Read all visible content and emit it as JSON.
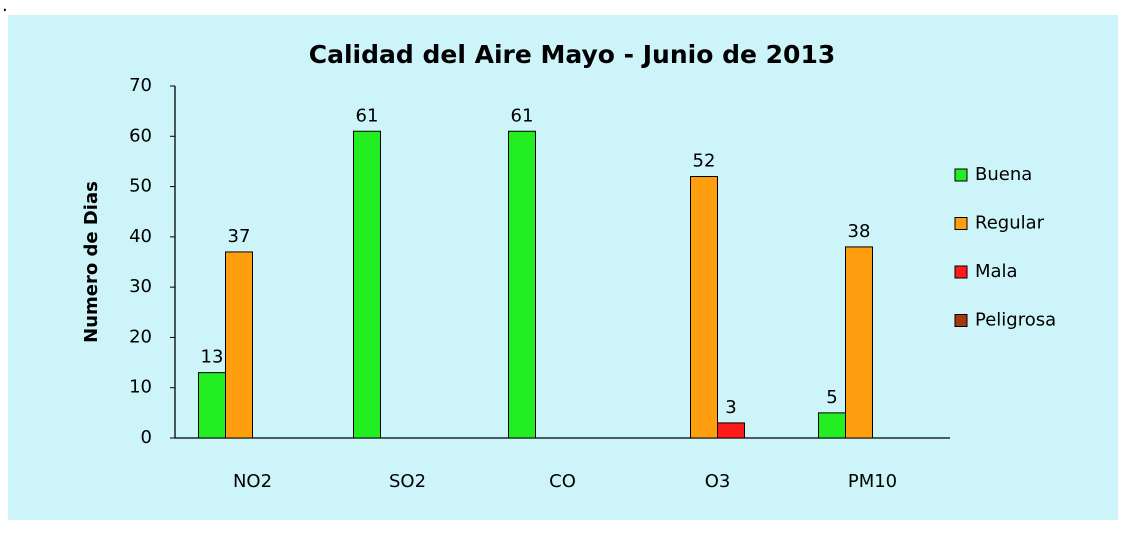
{
  "corner_mark": ".",
  "chart_data": {
    "type": "bar",
    "title": "Calidad del Aire  Mayo - Junio de 2013",
    "y_label": "Numero de Dias",
    "categories": [
      "NO2",
      "SO2",
      "CO",
      "O3",
      "PM10"
    ],
    "series": [
      {
        "name": "Buena",
        "color": "#22ee22",
        "values": [
          13,
          61,
          61,
          null,
          5
        ]
      },
      {
        "name": "Regular",
        "color": "#ff9f10",
        "values": [
          37,
          null,
          null,
          52,
          38
        ]
      },
      {
        "name": "Mala",
        "color": "#ff1a1a",
        "values": [
          null,
          null,
          null,
          3,
          null
        ]
      },
      {
        "name": "Peligrosa",
        "color": "#a23a0e",
        "values": [
          null,
          null,
          null,
          null,
          null
        ]
      }
    ],
    "ylim": [
      0,
      70
    ],
    "yticks": [
      0,
      10,
      20,
      30,
      40,
      50,
      60,
      70
    ],
    "legend": "right"
  }
}
